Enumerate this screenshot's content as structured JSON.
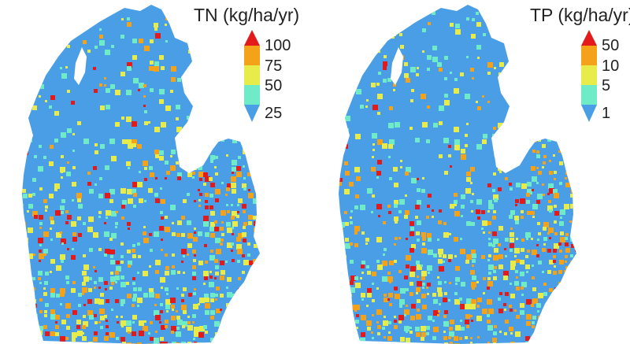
{
  "maps": [
    {
      "id": "tn",
      "legend_title": "TN (kg/ha/yr)",
      "legend_ticks": [
        "100",
        "75",
        "50",
        "25"
      ],
      "colors": {
        "max": "#e31a1c",
        "high": "#f5a21b",
        "mid": "#e8ec4a",
        "low": "#6fecc7",
        "min": "#4a9ee6"
      },
      "high_intensity": 1.0
    },
    {
      "id": "tp",
      "legend_title": "TP (kg/ha/yr)",
      "legend_ticks": [
        "50",
        "10",
        "5",
        "1"
      ],
      "colors": {
        "max": "#e31a1c",
        "high": "#f5a21b",
        "mid": "#e8ec4a",
        "low": "#6fecc7",
        "min": "#4a9ee6"
      },
      "high_intensity": 0.65
    }
  ]
}
